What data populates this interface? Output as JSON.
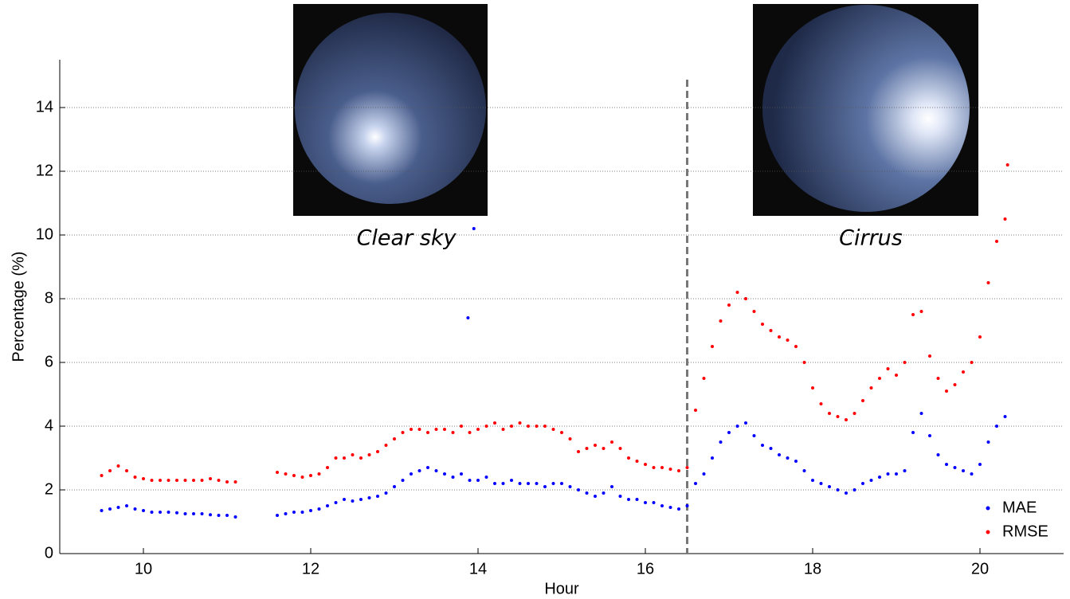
{
  "chart_data": {
    "type": "scatter",
    "x_label": "Hour",
    "y_label": "Percentage (%)",
    "annotations": [
      "Clear sky",
      "Cirrus"
    ],
    "vline": 16.5,
    "xlim": [
      9,
      21
    ],
    "xticks": [
      10,
      12,
      14,
      16,
      18,
      20
    ],
    "ylim": [
      0,
      15.5
    ],
    "yticks": [
      0,
      2,
      4,
      6,
      8,
      10,
      12,
      14
    ],
    "grid": true,
    "legend": "lower right",
    "series": [
      {
        "name": "MAE",
        "color": "#0000ff",
        "x": [
          9.5,
          9.6,
          9.7,
          9.8,
          9.9,
          10.0,
          10.1,
          10.2,
          10.3,
          10.4,
          10.5,
          10.6,
          10.7,
          10.8,
          10.9,
          11.0,
          11.1,
          11.6,
          11.7,
          11.8,
          11.9,
          12.0,
          12.1,
          12.2,
          12.3,
          12.4,
          12.5,
          12.6,
          12.7,
          12.8,
          12.9,
          13.0,
          13.1,
          13.2,
          13.3,
          13.4,
          13.5,
          13.6,
          13.7,
          13.8,
          13.9,
          14.0,
          14.1,
          14.2,
          14.3,
          14.4,
          14.5,
          14.6,
          14.7,
          14.8,
          14.9,
          15.0,
          15.1,
          15.2,
          15.3,
          15.4,
          15.5,
          15.6,
          15.7,
          15.8,
          15.9,
          16.0,
          16.1,
          16.2,
          16.3,
          16.4,
          16.5,
          16.6,
          16.7,
          16.8,
          16.9,
          17.0,
          17.1,
          17.2,
          17.3,
          17.4,
          17.5,
          17.6,
          17.7,
          17.8,
          17.9,
          18.0,
          18.1,
          18.2,
          18.3,
          18.4,
          18.5,
          18.6,
          18.7,
          18.8,
          18.9,
          19.0,
          19.1,
          19.2,
          19.3,
          19.4,
          19.5,
          19.6,
          19.7,
          19.8,
          19.9,
          20.0,
          20.1,
          20.2,
          20.3,
          13.88,
          13.95
        ],
        "values": [
          1.35,
          1.4,
          1.45,
          1.5,
          1.4,
          1.35,
          1.3,
          1.3,
          1.3,
          1.28,
          1.25,
          1.25,
          1.25,
          1.22,
          1.2,
          1.2,
          1.15,
          1.2,
          1.25,
          1.3,
          1.3,
          1.35,
          1.4,
          1.5,
          1.6,
          1.7,
          1.65,
          1.7,
          1.75,
          1.8,
          1.9,
          2.1,
          2.3,
          2.5,
          2.6,
          2.7,
          2.6,
          2.5,
          2.4,
          2.5,
          2.3,
          2.3,
          2.4,
          2.2,
          2.2,
          2.3,
          2.2,
          2.2,
          2.2,
          2.1,
          2.2,
          2.2,
          2.1,
          2.0,
          1.9,
          1.8,
          1.9,
          2.1,
          1.8,
          1.7,
          1.7,
          1.6,
          1.6,
          1.5,
          1.45,
          1.4,
          1.5,
          2.2,
          2.5,
          3.0,
          3.5,
          3.8,
          4.0,
          4.1,
          3.7,
          3.4,
          3.3,
          3.1,
          3.0,
          2.9,
          2.6,
          2.3,
          2.2,
          2.1,
          2.0,
          1.9,
          2.0,
          2.2,
          2.3,
          2.4,
          2.5,
          2.5,
          2.6,
          3.8,
          4.4,
          3.7,
          3.1,
          2.8,
          2.7,
          2.6,
          2.5,
          2.8,
          3.5,
          4.0,
          4.3,
          7.4,
          10.2
        ]
      },
      {
        "name": "RMSE",
        "color": "#ff0000",
        "x": [
          9.5,
          9.6,
          9.7,
          9.8,
          9.9,
          10.0,
          10.1,
          10.2,
          10.3,
          10.4,
          10.5,
          10.6,
          10.7,
          10.8,
          10.9,
          11.0,
          11.1,
          11.6,
          11.7,
          11.8,
          11.9,
          12.0,
          12.1,
          12.2,
          12.3,
          12.4,
          12.5,
          12.6,
          12.7,
          12.8,
          12.9,
          13.0,
          13.1,
          13.2,
          13.3,
          13.4,
          13.5,
          13.6,
          13.7,
          13.8,
          13.9,
          14.0,
          14.1,
          14.2,
          14.3,
          14.4,
          14.5,
          14.6,
          14.7,
          14.8,
          14.9,
          15.0,
          15.1,
          15.2,
          15.3,
          15.4,
          15.5,
          15.6,
          15.7,
          15.8,
          15.9,
          16.0,
          16.1,
          16.2,
          16.3,
          16.4,
          16.5,
          16.6,
          16.7,
          16.8,
          16.9,
          17.0,
          17.1,
          17.2,
          17.3,
          17.4,
          17.5,
          17.6,
          17.7,
          17.8,
          17.9,
          18.0,
          18.1,
          18.2,
          18.3,
          18.4,
          18.5,
          18.6,
          18.7,
          18.8,
          18.9,
          19.0,
          19.1,
          19.2,
          19.3,
          19.4,
          19.5,
          19.6,
          19.7,
          19.8,
          19.9,
          20.0,
          20.1,
          20.2,
          20.3,
          20.33
        ],
        "values": [
          2.45,
          2.6,
          2.75,
          2.6,
          2.4,
          2.35,
          2.3,
          2.3,
          2.3,
          2.3,
          2.3,
          2.3,
          2.3,
          2.35,
          2.3,
          2.25,
          2.25,
          2.55,
          2.5,
          2.45,
          2.4,
          2.45,
          2.5,
          2.7,
          3.0,
          3.0,
          3.1,
          3.0,
          3.1,
          3.2,
          3.4,
          3.6,
          3.8,
          3.9,
          3.9,
          3.8,
          3.9,
          3.9,
          3.8,
          4.0,
          3.8,
          3.9,
          4.0,
          4.1,
          3.9,
          4.0,
          4.1,
          4.0,
          4.0,
          4.0,
          3.9,
          3.8,
          3.6,
          3.2,
          3.3,
          3.4,
          3.3,
          3.5,
          3.3,
          3.0,
          2.9,
          2.8,
          2.7,
          2.7,
          2.65,
          2.6,
          2.7,
          4.5,
          5.5,
          6.5,
          7.3,
          7.8,
          8.2,
          8.0,
          7.6,
          7.2,
          7.0,
          6.8,
          6.7,
          6.5,
          6.0,
          5.2,
          4.7,
          4.4,
          4.3,
          4.2,
          4.4,
          4.8,
          5.2,
          5.5,
          5.8,
          5.6,
          6.0,
          7.5,
          7.6,
          6.2,
          5.5,
          5.1,
          5.3,
          5.7,
          6.0,
          6.8,
          8.5,
          9.8,
          10.5,
          12.2
        ]
      }
    ]
  }
}
